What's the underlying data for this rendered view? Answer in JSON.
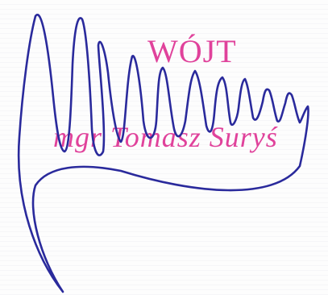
{
  "stamp": {
    "title": "WÓJT",
    "name": "mgr Tomasz Suryś"
  },
  "colors": {
    "stamp_ink": "#e0429b",
    "signature_ink": "#2a2a9c"
  }
}
